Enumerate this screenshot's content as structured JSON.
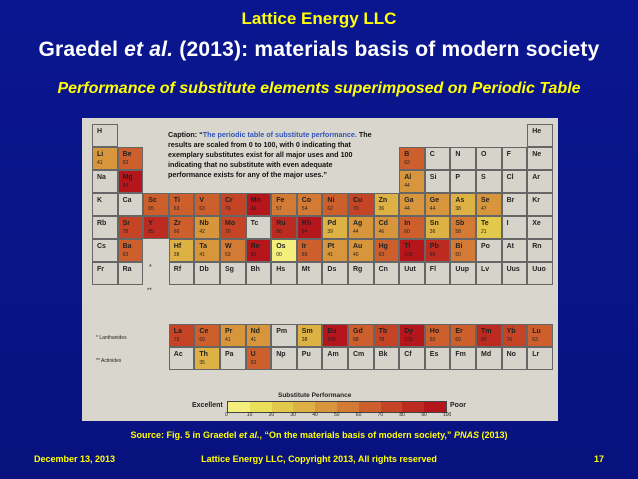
{
  "slide": {
    "company": "Lattice Energy LLC",
    "headline": {
      "part1": "Graedel ",
      "italic": "et al.",
      "part2": " (2013): materials basis of modern society"
    },
    "subhead": "Performance of substitute elements superimposed on Periodic Table",
    "caption": {
      "label": "Caption: “",
      "blue": "The periodic table of substitute performance.",
      "rest": " The results are scaled from 0 to 100, with 0 indicating that exemplary substitutes exist for all major uses and 100 indicating that no substitute with even adequate performance exists for any of the major uses.”"
    },
    "source": {
      "pre": "Source: Fig. 5 in Graedel ",
      "italic": "et al.",
      "mid": ", “On the materials basis of modern society,” ",
      "journal": "PNAS",
      "post": " (2013)"
    },
    "footer": {
      "date": "December 13, 2013",
      "copyright": "Lattice Energy LLC, Copyright 2013, All rights reserved",
      "page": "17"
    }
  },
  "table": {
    "lanthanides_label": "* Lanthanides",
    "actinides_label": "** Actinides",
    "star": "*",
    "dstar": "**",
    "legend_title": "Substitute Performance",
    "legend_excellent": "Excellent",
    "legend_poor": "Poor",
    "legend_ticks": [
      "0",
      "10",
      "20",
      "30",
      "40",
      "50",
      "60",
      "70",
      "80",
      "90",
      "100"
    ],
    "legend_colors": [
      "#f4ef7c",
      "#eadf5a",
      "#e2c94c",
      "#ddb144",
      "#d8963c",
      "#d37a34",
      "#cc5f2c",
      "#c54426",
      "#bd2a20",
      "#b4161c"
    ],
    "elements": [
      {
        "s": "H",
        "r": 0,
        "c": 0
      },
      {
        "s": "He",
        "r": 0,
        "c": 17
      },
      {
        "s": "Li",
        "r": 1,
        "c": 0,
        "v": "41"
      },
      {
        "s": "Be",
        "r": 1,
        "c": 1,
        "v": "63"
      },
      {
        "s": "B",
        "r": 1,
        "c": 12,
        "v": "62"
      },
      {
        "s": "C",
        "r": 1,
        "c": 13
      },
      {
        "s": "N",
        "r": 1,
        "c": 14
      },
      {
        "s": "O",
        "r": 1,
        "c": 15
      },
      {
        "s": "F",
        "r": 1,
        "c": 16
      },
      {
        "s": "Ne",
        "r": 1,
        "c": 17
      },
      {
        "s": "Na",
        "r": 2,
        "c": 0
      },
      {
        "s": "Mg",
        "r": 2,
        "c": 1,
        "v": "94"
      },
      {
        "s": "Al",
        "r": 2,
        "c": 12,
        "v": "44"
      },
      {
        "s": "Si",
        "r": 2,
        "c": 13
      },
      {
        "s": "P",
        "r": 2,
        "c": 14
      },
      {
        "s": "S",
        "r": 2,
        "c": 15
      },
      {
        "s": "Cl",
        "r": 2,
        "c": 16
      },
      {
        "s": "Ar",
        "r": 2,
        "c": 17
      },
      {
        "s": "K",
        "r": 3,
        "c": 0
      },
      {
        "s": "Ca",
        "r": 3,
        "c": 1
      },
      {
        "s": "Sc",
        "r": 3,
        "c": 2,
        "v": "65"
      },
      {
        "s": "Ti",
        "r": 3,
        "c": 3,
        "v": "63"
      },
      {
        "s": "V",
        "r": 3,
        "c": 4,
        "v": "63"
      },
      {
        "s": "Cr",
        "r": 3,
        "c": 5,
        "v": "76"
      },
      {
        "s": "Mn",
        "r": 3,
        "c": 6,
        "v": "96"
      },
      {
        "s": "Fe",
        "r": 3,
        "c": 7,
        "v": "57"
      },
      {
        "s": "Co",
        "r": 3,
        "c": 8,
        "v": "54"
      },
      {
        "s": "Ni",
        "r": 3,
        "c": 9,
        "v": "62"
      },
      {
        "s": "Cu",
        "r": 3,
        "c": 10,
        "v": "70"
      },
      {
        "s": "Zn",
        "r": 3,
        "c": 11,
        "v": "36"
      },
      {
        "s": "Ga",
        "r": 3,
        "c": 12,
        "v": "44"
      },
      {
        "s": "Ge",
        "r": 3,
        "c": 13,
        "v": "44"
      },
      {
        "s": "As",
        "r": 3,
        "c": 14,
        "v": "38"
      },
      {
        "s": "Se",
        "r": 3,
        "c": 15,
        "v": "47"
      },
      {
        "s": "Br",
        "r": 3,
        "c": 16
      },
      {
        "s": "Kr",
        "r": 3,
        "c": 17
      },
      {
        "s": "Rb",
        "r": 4,
        "c": 0
      },
      {
        "s": "Sr",
        "r": 4,
        "c": 1,
        "v": "78"
      },
      {
        "s": "Y",
        "r": 4,
        "c": 2,
        "v": "85"
      },
      {
        "s": "Zr",
        "r": 4,
        "c": 3,
        "v": "66"
      },
      {
        "s": "Nb",
        "r": 4,
        "c": 4,
        "v": "42"
      },
      {
        "s": "Mo",
        "r": 4,
        "c": 5,
        "v": "70"
      },
      {
        "s": "Tc",
        "r": 4,
        "c": 6
      },
      {
        "s": "Ru",
        "r": 4,
        "c": 7,
        "v": "86"
      },
      {
        "s": "Rh",
        "r": 4,
        "c": 8,
        "v": "94"
      },
      {
        "s": "Pd",
        "r": 4,
        "c": 9,
        "v": "39"
      },
      {
        "s": "Ag",
        "r": 4,
        "c": 10,
        "v": "44"
      },
      {
        "s": "Cd",
        "r": 4,
        "c": 11,
        "v": "46"
      },
      {
        "s": "In",
        "r": 4,
        "c": 12,
        "v": "60"
      },
      {
        "s": "Sn",
        "r": 4,
        "c": 13,
        "v": "36"
      },
      {
        "s": "Sb",
        "r": 4,
        "c": 14,
        "v": "58"
      },
      {
        "s": "Te",
        "r": 4,
        "c": 15,
        "v": "21"
      },
      {
        "s": "I",
        "r": 4,
        "c": 16
      },
      {
        "s": "Xe",
        "r": 4,
        "c": 17
      },
      {
        "s": "Cs",
        "r": 5,
        "c": 0
      },
      {
        "s": "Ba",
        "r": 5,
        "c": 1,
        "v": "63"
      },
      {
        "s": "Hf",
        "r": 5,
        "c": 3,
        "v": "38"
      },
      {
        "s": "Ta",
        "r": 5,
        "c": 4,
        "v": "41"
      },
      {
        "s": "W",
        "r": 5,
        "c": 5,
        "v": "53"
      },
      {
        "s": "Re",
        "r": 5,
        "c": 6,
        "v": "90"
      },
      {
        "s": "Os",
        "r": 5,
        "c": 7,
        "v": "00"
      },
      {
        "s": "Ir",
        "r": 5,
        "c": 8,
        "v": "69"
      },
      {
        "s": "Pt",
        "r": 5,
        "c": 9,
        "v": "41"
      },
      {
        "s": "Au",
        "r": 5,
        "c": 10,
        "v": "40"
      },
      {
        "s": "Hg",
        "r": 5,
        "c": 11,
        "v": "63"
      },
      {
        "s": "Tl",
        "r": 5,
        "c": 12,
        "v": "100"
      },
      {
        "s": "Pb",
        "r": 5,
        "c": 13,
        "v": "80"
      },
      {
        "s": "Bi",
        "r": 5,
        "c": 14,
        "v": "50"
      },
      {
        "s": "Po",
        "r": 5,
        "c": 15
      },
      {
        "s": "At",
        "r": 5,
        "c": 16
      },
      {
        "s": "Rn",
        "r": 5,
        "c": 17
      },
      {
        "s": "Fr",
        "r": 6,
        "c": 0
      },
      {
        "s": "Ra",
        "r": 6,
        "c": 1
      },
      {
        "s": "Rf",
        "r": 6,
        "c": 3
      },
      {
        "s": "Db",
        "r": 6,
        "c": 4
      },
      {
        "s": "Sg",
        "r": 6,
        "c": 5
      },
      {
        "s": "Bh",
        "r": 6,
        "c": 6
      },
      {
        "s": "Hs",
        "r": 6,
        "c": 7
      },
      {
        "s": "Mt",
        "r": 6,
        "c": 8
      },
      {
        "s": "Ds",
        "r": 6,
        "c": 9
      },
      {
        "s": "Rg",
        "r": 6,
        "c": 10
      },
      {
        "s": "Cn",
        "r": 6,
        "c": 11
      },
      {
        "s": "Uut",
        "r": 6,
        "c": 12
      },
      {
        "s": "Fl",
        "r": 6,
        "c": 13
      },
      {
        "s": "Uup",
        "r": 6,
        "c": 14
      },
      {
        "s": "Lv",
        "r": 6,
        "c": 15
      },
      {
        "s": "Uus",
        "r": 6,
        "c": 16
      },
      {
        "s": "Uuo",
        "r": 6,
        "c": 17
      },
      {
        "s": "La",
        "r": 7,
        "c": 3,
        "v": "75"
      },
      {
        "s": "Ce",
        "r": 7,
        "c": 4,
        "v": "60"
      },
      {
        "s": "Pr",
        "r": 7,
        "c": 5,
        "v": "41"
      },
      {
        "s": "Nd",
        "r": 7,
        "c": 6,
        "v": "41"
      },
      {
        "s": "Pm",
        "r": 7,
        "c": 7
      },
      {
        "s": "Sm",
        "r": 7,
        "c": 8,
        "v": "38"
      },
      {
        "s": "Eu",
        "r": 7,
        "c": 9,
        "v": "100"
      },
      {
        "s": "Gd",
        "r": 7,
        "c": 10,
        "v": "68"
      },
      {
        "s": "Tb",
        "r": 7,
        "c": 11,
        "v": "78"
      },
      {
        "s": "Dy",
        "r": 7,
        "c": 12,
        "v": "100"
      },
      {
        "s": "Ho",
        "r": 7,
        "c": 13,
        "v": "60"
      },
      {
        "s": "Er",
        "r": 7,
        "c": 14,
        "v": "60"
      },
      {
        "s": "Tm",
        "r": 7,
        "c": 15,
        "v": "80"
      },
      {
        "s": "Yb",
        "r": 7,
        "c": 16,
        "v": "76"
      },
      {
        "s": "Lu",
        "r": 7,
        "c": 17,
        "v": "63"
      },
      {
        "s": "Ac",
        "r": 8,
        "c": 3
      },
      {
        "s": "Th",
        "r": 8,
        "c": 4,
        "v": "35"
      },
      {
        "s": "Pa",
        "r": 8,
        "c": 5
      },
      {
        "s": "U",
        "r": 8,
        "c": 6,
        "v": "63"
      },
      {
        "s": "Np",
        "r": 8,
        "c": 7
      },
      {
        "s": "Pu",
        "r": 8,
        "c": 8
      },
      {
        "s": "Am",
        "r": 8,
        "c": 9
      },
      {
        "s": "Cm",
        "r": 8,
        "c": 10
      },
      {
        "s": "Bk",
        "r": 8,
        "c": 11
      },
      {
        "s": "Cf",
        "r": 8,
        "c": 12
      },
      {
        "s": "Es",
        "r": 8,
        "c": 13
      },
      {
        "s": "Fm",
        "r": 8,
        "c": 14
      },
      {
        "s": "Md",
        "r": 8,
        "c": 15
      },
      {
        "s": "No",
        "r": 8,
        "c": 16
      },
      {
        "s": "Lr",
        "r": 8,
        "c": 17
      }
    ]
  }
}
